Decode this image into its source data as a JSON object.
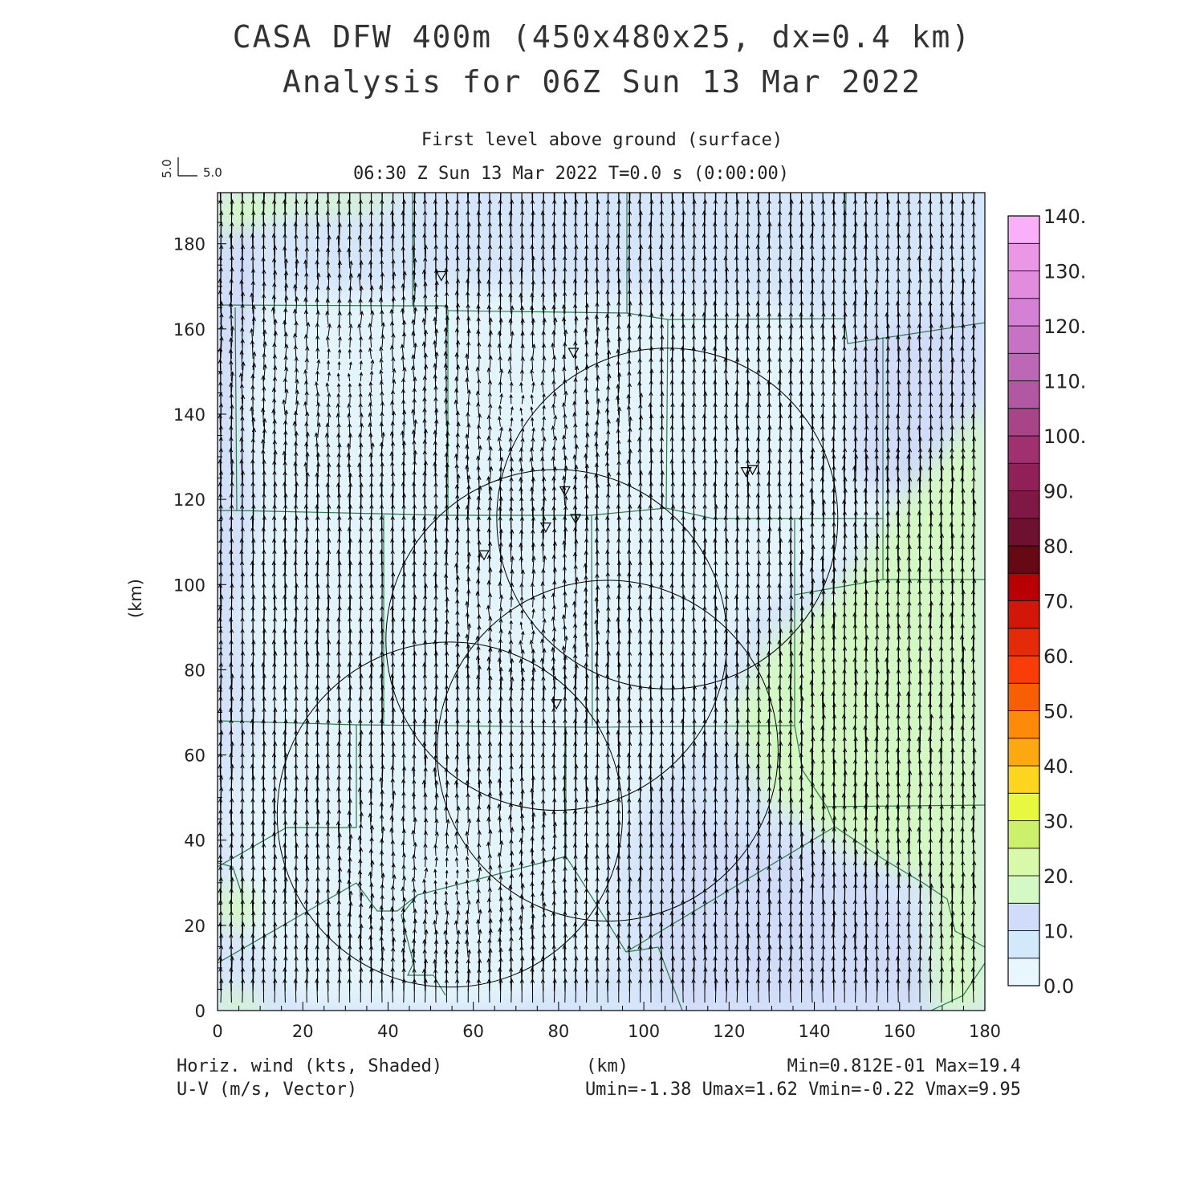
{
  "header": {
    "title_line1": "CASA DFW 400m (450x480x25, dx=0.4 km)",
    "title_line2": "Analysis for 06Z Sun 13 Mar 2022",
    "level": "First level above ground (surface)",
    "time": "06:30 Z Sun 13 Mar 2022   T=0.0 s (0:00:00)"
  },
  "vector_key": {
    "vertical": "5.0",
    "horizontal": "5.0"
  },
  "axes": {
    "x_ticks": [
      "0",
      "20",
      "40",
      "60",
      "80",
      "100",
      "120",
      "140",
      "160",
      "180"
    ],
    "y_ticks": [
      "0",
      "20",
      "40",
      "60",
      "80",
      "100",
      "120",
      "140",
      "160",
      "180"
    ],
    "x_label": "(km)",
    "y_label": "(km)",
    "x_range_km": [
      0,
      180
    ],
    "y_range_km": [
      0,
      192
    ]
  },
  "colorbar": {
    "labels": [
      "0.0",
      "10.",
      "20.",
      "30.",
      "40.",
      "50.",
      "60.",
      "70.",
      "80.",
      "90.",
      "100.",
      "110.",
      "120.",
      "130.",
      "140."
    ],
    "colors": [
      "#e8f6fd",
      "#d2e9fb",
      "#d0dcf8",
      "#d4f9c4",
      "#d8f9aa",
      "#ccf06c",
      "#e8f840",
      "#fdd41e",
      "#fca810",
      "#fd8a08",
      "#f85e04",
      "#fa3c08",
      "#e42a08",
      "#d21608",
      "#b80004",
      "#660914",
      "#6e1030",
      "#801846",
      "#902058",
      "#a03070",
      "#a84488",
      "#b258a2",
      "#bc68b6",
      "#c872c6",
      "#d480d4",
      "#e28cde",
      "#ec96e6",
      "#fab0f8"
    ]
  },
  "footer": {
    "left_line1": "Horiz. wind (kts, Shaded)",
    "left_line2": "U-V (m/s, Vector)",
    "center": "(km)",
    "right_line1": "Min=0.812E-01 Max=19.4",
    "right_line2": "Umin=-1.38 Umax=1.62 Vmin=-0.22 Vmax=9.95"
  },
  "map": {
    "colors": {
      "bg": "#d6e6fa",
      "light": "#e4f4fd",
      "purple": "#d0dcf8",
      "green": "#d4f8c4",
      "county": "#2c7a4a",
      "ring": "#000000",
      "vector": "#000000"
    },
    "radars_km": [
      [
        52.5,
        172.5
      ],
      [
        83.5,
        154.5
      ],
      [
        124,
        126.5
      ],
      [
        125.5,
        127
      ],
      [
        81.5,
        122
      ],
      [
        77,
        113.5
      ],
      [
        84,
        115.5
      ],
      [
        62.5,
        107
      ],
      [
        79.5,
        72
      ]
    ],
    "rings_km": [
      {
        "cx": 54.5,
        "cy": 46,
        "r": 40.5
      },
      {
        "cx": 91.5,
        "cy": 61,
        "r": 40
      },
      {
        "cx": 79.5,
        "cy": 87,
        "r": 40
      },
      {
        "cx": 105.5,
        "cy": 115.5,
        "r": 40
      }
    ]
  }
}
